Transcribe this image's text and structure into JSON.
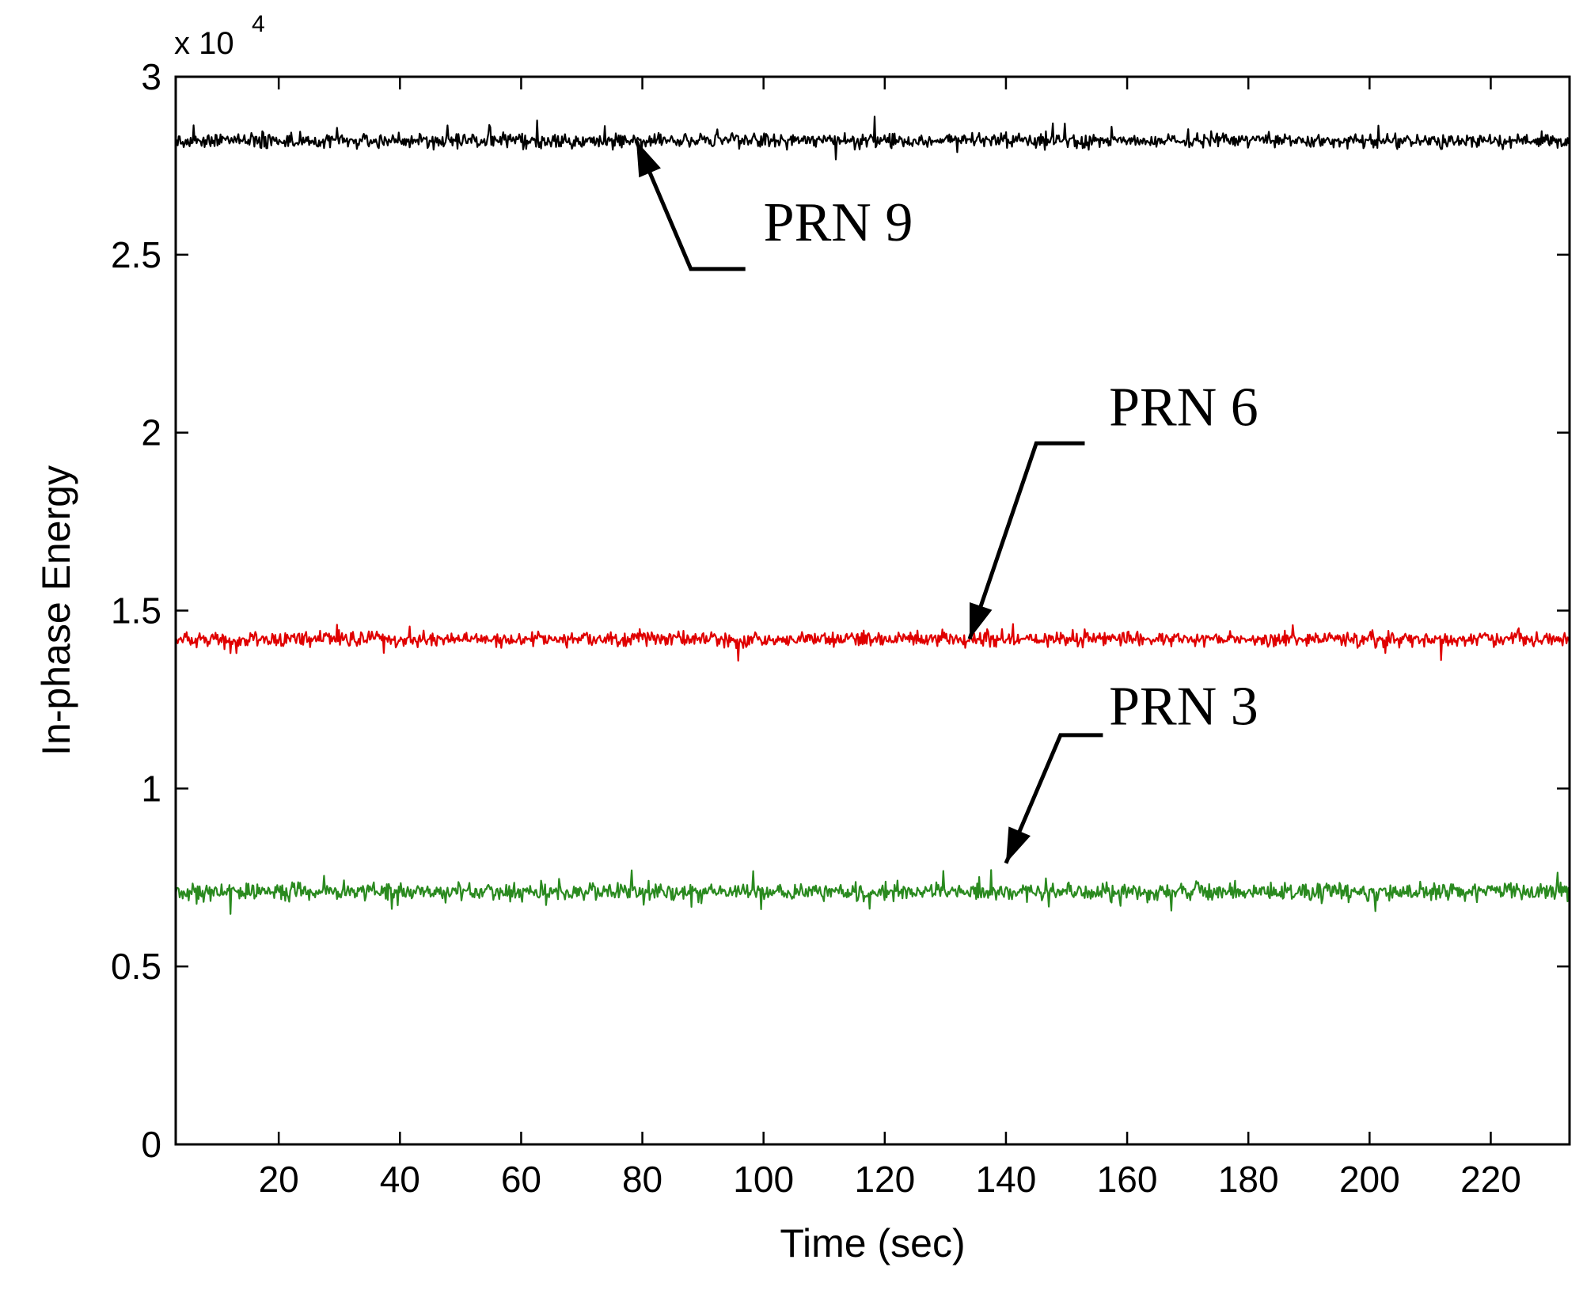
{
  "chart_data": {
    "type": "line",
    "title": "",
    "xlabel": "Time (sec)",
    "ylabel": "In-phase Energy",
    "y_multiplier_base": "x 10",
    "y_multiplier_exp": "4",
    "xlim": [
      3,
      233
    ],
    "ylim": [
      0,
      3
    ],
    "xticks": [
      20,
      40,
      60,
      80,
      100,
      120,
      140,
      160,
      180,
      200,
      220
    ],
    "xtick_labels": [
      "20",
      "40",
      "60",
      "80",
      "100",
      "120",
      "140",
      "160",
      "180",
      "200",
      "220"
    ],
    "yticks": [
      0,
      0.5,
      1,
      1.5,
      2,
      2.5,
      3
    ],
    "ytick_labels": [
      "0",
      "0.5",
      "1",
      "1.5",
      "2",
      "2.5",
      "3"
    ],
    "grid": false,
    "series": [
      {
        "name": "PRN 9",
        "color": "#000000",
        "mean": 2.82,
        "noise": 0.03,
        "seed": 9
      },
      {
        "name": "PRN 6",
        "color": "#e00000",
        "mean": 1.42,
        "noise": 0.03,
        "seed": 6
      },
      {
        "name": "PRN 3",
        "color": "#2a8a1f",
        "mean": 0.71,
        "noise": 0.035,
        "seed": 3
      }
    ],
    "annotations": [
      {
        "text": "PRN 9",
        "series": "PRN 9",
        "arrow_tip": [
          79,
          2.82
        ],
        "arrow_elbow": [
          88,
          2.46
        ],
        "line_end": [
          97,
          2.46
        ],
        "text_at": [
          100,
          2.54
        ]
      },
      {
        "text": "PRN 6",
        "series": "PRN 6",
        "arrow_tip": [
          134,
          1.42
        ],
        "arrow_elbow": [
          145,
          1.97
        ],
        "line_end": [
          153,
          1.97
        ],
        "text_at": [
          157,
          2.02
        ]
      },
      {
        "text": "PRN 3",
        "series": "PRN 3",
        "arrow_tip": [
          140,
          0.79
        ],
        "arrow_elbow": [
          149,
          1.15
        ],
        "line_end": [
          156,
          1.15
        ],
        "text_at": [
          157,
          1.18
        ]
      }
    ]
  }
}
